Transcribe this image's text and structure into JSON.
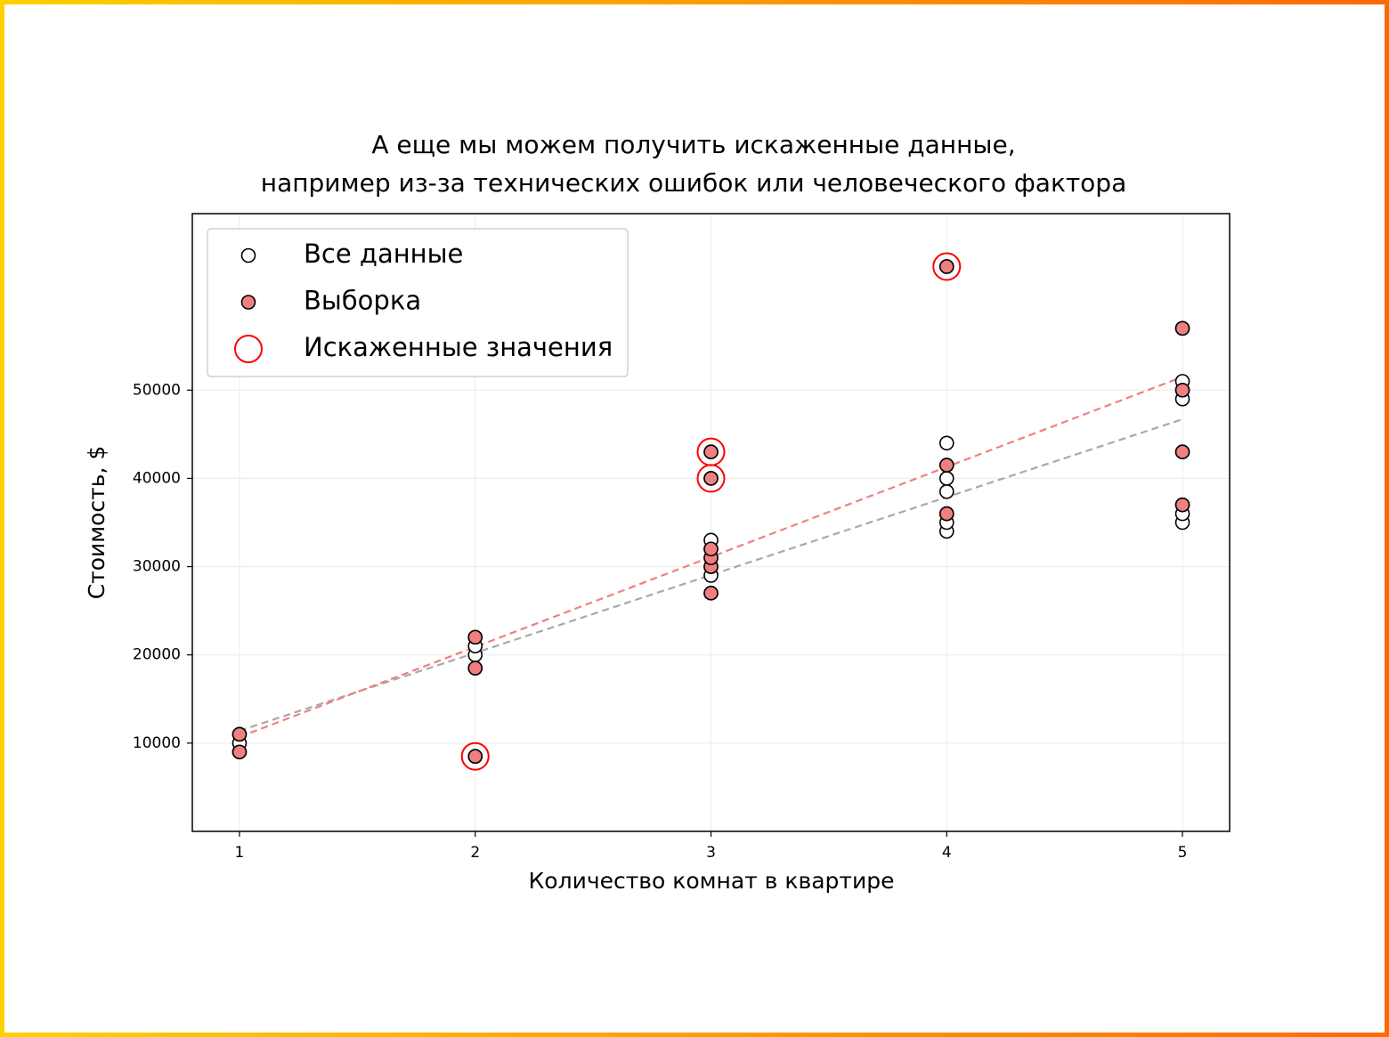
{
  "chart_data": {
    "type": "scatter",
    "title": [
      "А еще мы можем получить искаженные данные,",
      "например из-за технических ошибок или человеческого фактора"
    ],
    "xlabel": "Количество комнат в квартире",
    "ylabel": "Стоимость, $",
    "xlim": [
      0.8,
      5.2
    ],
    "ylim": [
      0,
      70000
    ],
    "xticks": [
      1,
      2,
      3,
      4,
      5
    ],
    "yticks": [
      10000,
      20000,
      30000,
      40000,
      50000
    ],
    "grid": true,
    "legend": "upper left",
    "series": [
      {
        "name": "Все данные",
        "marker": "circle",
        "color": "#ffffff",
        "x": [
          1,
          1,
          1,
          2,
          2,
          2,
          2,
          2,
          3,
          3,
          3,
          3,
          3,
          3,
          3,
          3,
          4,
          4,
          4,
          4,
          4,
          4,
          4,
          4,
          5,
          5,
          5,
          5,
          5,
          5,
          5,
          5
        ],
        "values": [
          9000,
          10000,
          11000,
          8500,
          18500,
          20000,
          21000,
          22000,
          27000,
          29000,
          30000,
          31000,
          32000,
          33000,
          40000,
          43000,
          34000,
          35000,
          36000,
          38500,
          40000,
          41500,
          44000,
          64000,
          35000,
          36000,
          37000,
          43000,
          49000,
          50000,
          51000,
          57000
        ]
      },
      {
        "name": "Выборка",
        "marker": "circle",
        "color": "#f08080",
        "x": [
          1,
          1,
          2,
          2,
          2,
          3,
          3,
          3,
          3,
          3,
          3,
          4,
          4,
          4,
          5,
          5,
          5,
          5
        ],
        "values": [
          9000,
          11000,
          8500,
          18500,
          22000,
          27000,
          30000,
          31000,
          32000,
          40000,
          43000,
          36000,
          41500,
          64000,
          37000,
          43000,
          50000,
          57000
        ]
      },
      {
        "name": "Искаженные значения",
        "marker": "ring",
        "color": "#ff0000",
        "x": [
          2,
          3,
          3,
          4
        ],
        "values": [
          8500,
          40000,
          43000,
          64000
        ]
      },
      {
        "marker": "dashed-line",
        "color": "#a9a9a9",
        "x": [
          1,
          5
        ],
        "values": [
          11400,
          46700
        ]
      },
      {
        "marker": "dashed-line",
        "color": "#f08080",
        "x": [
          1,
          5
        ],
        "values": [
          10700,
          51500
        ]
      }
    ]
  }
}
